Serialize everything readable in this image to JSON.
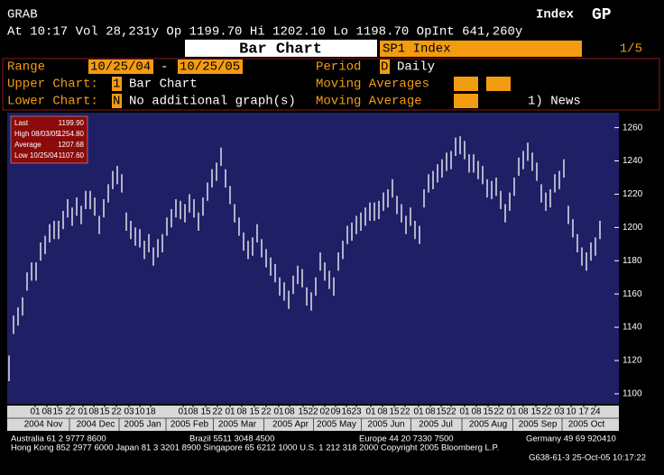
{
  "header": {
    "screen": "GRAB",
    "security_type": "Index",
    "function": "GP",
    "quote": "At 10:17 Vol 28,231y Op 1199.70 Hi 1202.10 Lo 1198.70 OpInt 641,260y",
    "title": "Bar Chart",
    "ticker": "SP1 Index",
    "page": "1/5"
  },
  "panel": {
    "range_label": "Range",
    "range_start": "10/25/04",
    "range_sep": "-",
    "range_end": "10/25/05",
    "period_label": "Period",
    "period_code": "D",
    "period": "Daily",
    "upper_label": "Upper Chart:",
    "upper_code": "1",
    "upper": "Bar Chart",
    "ma_label": "Moving Averages",
    "lower_label": "Lower Chart:",
    "lower_code": "N",
    "lower": "No additional graph(s)",
    "ma2_label": "Moving Average",
    "news": "1) News"
  },
  "info_box": {
    "rows": [
      [
        "Last",
        "1199.90"
      ],
      [
        "High 08/03/05",
        "1254.80"
      ],
      [
        "Average",
        "1207.68"
      ],
      [
        "Low 10/25/04",
        "1107.60"
      ]
    ]
  },
  "chart_data": {
    "type": "hilo",
    "color": "#ffffff",
    "grid": false,
    "xlim": [
      -0.4,
      135.2
    ],
    "ylim": [
      1094,
      1269
    ],
    "yticks": [
      1100,
      1120,
      1140,
      1160,
      1180,
      1200,
      1220,
      1240,
      1260
    ],
    "xticks": [
      {
        "value": 5.8,
        "label": "01"
      },
      {
        "value": 8.4,
        "label": "08"
      },
      {
        "value": 10.8,
        "label": "15"
      },
      {
        "value": 13.6,
        "label": "22"
      },
      {
        "value": 16.4,
        "label": "01"
      },
      {
        "value": 18.8,
        "label": "08"
      },
      {
        "value": 21.2,
        "label": "15"
      },
      {
        "value": 23.8,
        "label": "22"
      },
      {
        "value": 26.6,
        "label": "03"
      },
      {
        "value": 29,
        "label": "10"
      },
      {
        "value": 31.4,
        "label": "18"
      },
      {
        "value": 38.6,
        "label": "01"
      },
      {
        "value": 40.8,
        "label": "08"
      },
      {
        "value": 43.6,
        "label": "15"
      },
      {
        "value": 46.2,
        "label": "22"
      },
      {
        "value": 49,
        "label": "01"
      },
      {
        "value": 51.6,
        "label": "08"
      },
      {
        "value": 54.4,
        "label": "15"
      },
      {
        "value": 57,
        "label": "22"
      },
      {
        "value": 59.8,
        "label": "01"
      },
      {
        "value": 62.2,
        "label": "08"
      },
      {
        "value": 65.2,
        "label": "15"
      },
      {
        "value": 67.4,
        "label": "22"
      },
      {
        "value": 70,
        "label": "02"
      },
      {
        "value": 72.4,
        "label": "09"
      },
      {
        "value": 74.8,
        "label": "16"
      },
      {
        "value": 77,
        "label": "23"
      },
      {
        "value": 80.2,
        "label": "01"
      },
      {
        "value": 82.8,
        "label": "08"
      },
      {
        "value": 85.4,
        "label": "15"
      },
      {
        "value": 87.8,
        "label": "22"
      },
      {
        "value": 90.8,
        "label": "01"
      },
      {
        "value": 93.4,
        "label": "08"
      },
      {
        "value": 95.8,
        "label": "15"
      },
      {
        "value": 98,
        "label": "22"
      },
      {
        "value": 101,
        "label": "01"
      },
      {
        "value": 103.6,
        "label": "08"
      },
      {
        "value": 106.2,
        "label": "15"
      },
      {
        "value": 108.6,
        "label": "22"
      },
      {
        "value": 111.4,
        "label": "01"
      },
      {
        "value": 114,
        "label": "08"
      },
      {
        "value": 116.8,
        "label": "15"
      },
      {
        "value": 119.2,
        "label": "22"
      },
      {
        "value": 122,
        "label": "03"
      },
      {
        "value": 124.6,
        "label": "10"
      },
      {
        "value": 127.4,
        "label": "17"
      },
      {
        "value": 130,
        "label": "24"
      }
    ],
    "months": [
      {
        "value": 7.6,
        "label": "2004 Nov"
      },
      {
        "value": 19.2,
        "label": "2004 Dec"
      },
      {
        "value": 29.6,
        "label": "2005 Jan"
      },
      {
        "value": 40,
        "label": "2005 Feb"
      },
      {
        "value": 50.6,
        "label": "2005 Mar"
      },
      {
        "value": 62.4,
        "label": "2005 Apr"
      },
      {
        "value": 72.6,
        "label": "2005 May"
      },
      {
        "value": 83.6,
        "label": "2005 Jun"
      },
      {
        "value": 94.6,
        "label": "2005 Jul"
      },
      {
        "value": 106.2,
        "label": "2005 Aug"
      },
      {
        "value": 117.2,
        "label": "2005 Sep"
      },
      {
        "value": 128,
        "label": "2005 Oct"
      }
    ],
    "high": [
      1123,
      1147,
      1152,
      1158,
      1173,
      1179,
      1179,
      1191,
      1195,
      1202,
      1204,
      1204,
      1210,
      1217,
      1212,
      1218,
      1213,
      1222,
      1222,
      1218,
      1207,
      1217,
      1226,
      1234,
      1237,
      1232,
      1209,
      1204,
      1200,
      1199,
      1192,
      1196,
      1188,
      1193,
      1196,
      1206,
      1211,
      1217,
      1216,
      1214,
      1220,
      1217,
      1209,
      1218,
      1227,
      1235,
      1239,
      1248,
      1235,
      1225,
      1214,
      1206,
      1197,
      1192,
      1194,
      1202,
      1193,
      1187,
      1182,
      1178,
      1170,
      1167,
      1162,
      1171,
      1177,
      1175,
      1164,
      1161,
      1170,
      1185,
      1179,
      1174,
      1170,
      1185,
      1192,
      1201,
      1203,
      1207,
      1209,
      1212,
      1215,
      1215,
      1216,
      1221,
      1223,
      1229,
      1219,
      1214,
      1207,
      1212,
      1204,
      1201,
      1223,
      1232,
      1234,
      1238,
      1241,
      1245,
      1246,
      1254,
      1254.8,
      1252,
      1244,
      1244,
      1240,
      1237,
      1229,
      1228,
      1230,
      1222,
      1214,
      1221,
      1230,
      1242,
      1246,
      1251,
      1245,
      1239,
      1226,
      1221,
      1223,
      1232,
      1234,
      1241,
      1213,
      1205,
      1196,
      1188,
      1185,
      1191,
      1194,
      1204
    ],
    "low": [
      1107.6,
      1136,
      1141,
      1147,
      1162,
      1168,
      1168,
      1180,
      1184,
      1191,
      1193,
      1193,
      1199,
      1206,
      1201,
      1207,
      1202,
      1211,
      1211,
      1207,
      1196,
      1206,
      1215,
      1223,
      1226,
      1221,
      1198,
      1193,
      1189,
      1188,
      1181,
      1185,
      1177,
      1182,
      1185,
      1195,
      1200,
      1206,
      1205,
      1203,
      1209,
      1206,
      1198,
      1207,
      1216,
      1224,
      1228,
      1237,
      1224,
      1214,
      1203,
      1195,
      1186,
      1181,
      1183,
      1191,
      1182,
      1176,
      1171,
      1167,
      1159,
      1156,
      1151,
      1160,
      1166,
      1164,
      1153,
      1150,
      1159,
      1174,
      1168,
      1163,
      1159,
      1174,
      1181,
      1190,
      1192,
      1196,
      1198,
      1201,
      1204,
      1204,
      1205,
      1210,
      1212,
      1218,
      1208,
      1203,
      1196,
      1201,
      1193,
      1190,
      1212,
      1221,
      1223,
      1227,
      1230,
      1234,
      1235,
      1243,
      1244,
      1241,
      1233,
      1233,
      1229,
      1226,
      1218,
      1217,
      1219,
      1211,
      1203,
      1210,
      1219,
      1231,
      1235,
      1240,
      1234,
      1228,
      1215,
      1210,
      1212,
      1221,
      1223,
      1230,
      1202,
      1194,
      1185,
      1177,
      1174,
      1180,
      1183,
      1193
    ]
  },
  "footer": {
    "australia": "Australia 61 2 9777 8600",
    "brazil": "Brazil 5511 3048 4500",
    "europe": "Europe 44 20 7330 7500",
    "germany": "Germany 49 69 920410",
    "line2": "Hong Kong 852 2977 6000 Japan 81 3 3201 8900 Singapore 65 6212 1000 U.S. 1 212 318 2000 Copyright 2005 Bloomberg L.P.",
    "stamp": "G638-61-3 25-Oct-05 10:17:22"
  }
}
